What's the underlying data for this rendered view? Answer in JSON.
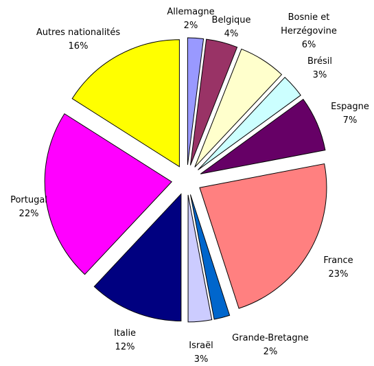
{
  "chart_data": {
    "type": "pie",
    "categories": [
      "Allemagne",
      "Belgique",
      "Bosnie et Herzégovine",
      "Brésil",
      "Espagne",
      "France",
      "Grande-Bretagne",
      "Israël",
      "Italie",
      "Portugal",
      "Autres nationalités"
    ],
    "values": [
      2,
      4,
      6,
      3,
      7,
      23,
      2,
      3,
      12,
      22,
      16
    ],
    "value_labels": [
      "2%",
      "4%",
      "6%",
      "3%",
      "7%",
      "23%",
      "2%",
      "3%",
      "12%",
      "22%",
      "16%"
    ],
    "colors": [
      "#9999ff",
      "#993366",
      "#ffffcc",
      "#ccffff",
      "#660066",
      "#ff8080",
      "#0066cc",
      "#ccccff",
      "#000080",
      "#ff00ff",
      "#ffff00"
    ]
  }
}
